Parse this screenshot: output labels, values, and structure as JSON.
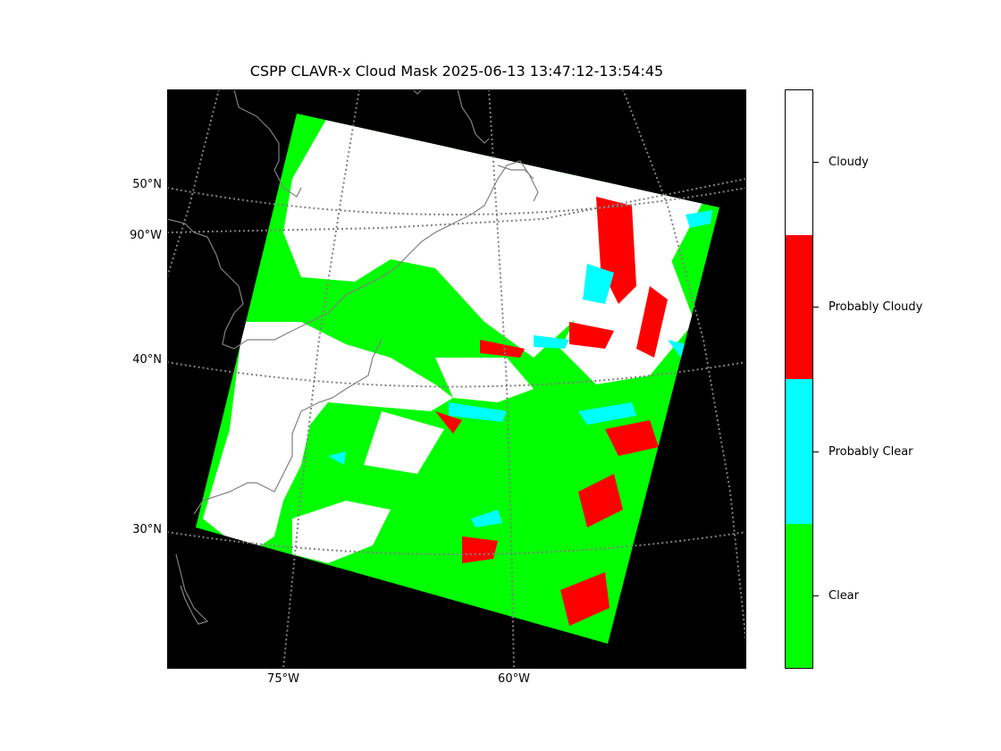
{
  "title": "CSPP CLAVR-x Cloud Mask 2025-06-13 13:47:12-13:54:45",
  "lat_labels": [
    "50°N",
    "90°W",
    "40°N",
    "30°N"
  ],
  "lon_labels": [
    "75°W",
    "60°W"
  ],
  "colorbar": {
    "classes": [
      {
        "label": "Cloudy",
        "color": "#ffffff"
      },
      {
        "label": "Probably Cloudy",
        "color": "#ff0000"
      },
      {
        "label": "Probably Clear",
        "color": "#00ffff"
      },
      {
        "label": "Clear",
        "color": "#00ff00"
      }
    ]
  },
  "colors": {
    "background": "#000000",
    "coastline": "#808080",
    "gridline": "#808080"
  }
}
